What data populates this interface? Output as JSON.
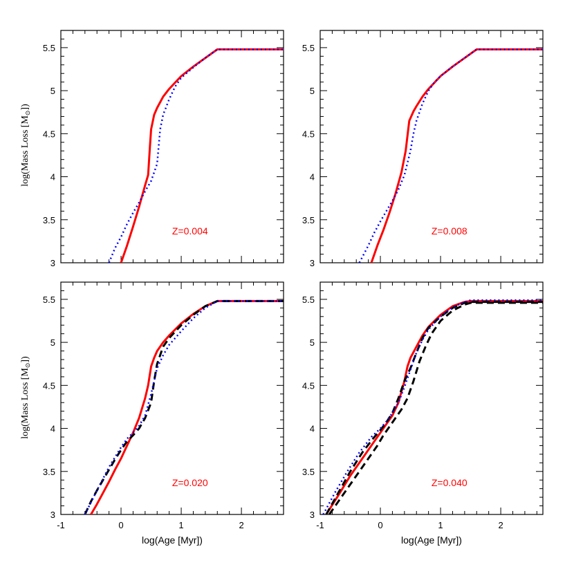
{
  "chart_data": [
    {
      "type": "line",
      "panel": "top-left",
      "annotation": "Z=0.004",
      "xlabel": "log(Age [Myr])",
      "ylabel": "log(Mass Loss [M_sun])",
      "xlim": [
        -1,
        2.7
      ],
      "ylim": [
        3,
        5.7
      ],
      "xticks": [
        "-1",
        "0",
        "1",
        "2"
      ],
      "yticks": [
        "3",
        "3.5",
        "4",
        "4.5",
        "5",
        "5.5"
      ],
      "series": [
        {
          "name": "red-solid",
          "style": "solid",
          "x": [
            0.0,
            0.1,
            0.2,
            0.3,
            0.4,
            0.45,
            0.48,
            0.5,
            0.55,
            0.6,
            0.7,
            0.8,
            1.0,
            1.2,
            1.4,
            1.6,
            2.7
          ],
          "y": [
            3.0,
            3.2,
            3.42,
            3.65,
            3.9,
            4.02,
            4.35,
            4.55,
            4.72,
            4.8,
            4.93,
            5.02,
            5.17,
            5.28,
            5.38,
            5.48,
            5.48
          ]
        },
        {
          "name": "blue-dotted",
          "style": "dotted",
          "x": [
            -0.2,
            -0.1,
            0.0,
            0.1,
            0.2,
            0.3,
            0.4,
            0.5,
            0.6,
            0.65,
            0.7,
            0.8,
            0.9,
            1.0,
            1.2,
            1.4,
            1.6,
            2.7
          ],
          "y": [
            3.0,
            3.17,
            3.3,
            3.45,
            3.58,
            3.7,
            3.83,
            3.95,
            4.15,
            4.55,
            4.72,
            4.9,
            5.05,
            5.15,
            5.27,
            5.38,
            5.48,
            5.48
          ]
        }
      ]
    },
    {
      "type": "line",
      "panel": "top-right",
      "annotation": "Z=0.008",
      "xlabel": "log(Age [Myr])",
      "ylabel": "",
      "xlim": [
        -1,
        2.7
      ],
      "ylim": [
        3,
        5.7
      ],
      "xticks": [
        "-1",
        "0",
        "1",
        "2"
      ],
      "yticks": [
        "3",
        "3.5",
        "4",
        "4.5",
        "5",
        "5.5"
      ],
      "series": [
        {
          "name": "red-solid",
          "style": "solid",
          "x": [
            -0.15,
            -0.05,
            0.05,
            0.15,
            0.25,
            0.35,
            0.42,
            0.48,
            0.55,
            0.6,
            0.7,
            0.8,
            1.0,
            1.2,
            1.4,
            1.6,
            2.7
          ],
          "y": [
            3.0,
            3.2,
            3.38,
            3.58,
            3.8,
            4.05,
            4.3,
            4.65,
            4.76,
            4.82,
            4.93,
            5.02,
            5.17,
            5.28,
            5.38,
            5.48,
            5.48
          ]
        },
        {
          "name": "blue-dotted",
          "style": "dotted",
          "x": [
            -0.35,
            -0.2,
            -0.1,
            0.0,
            0.1,
            0.2,
            0.3,
            0.4,
            0.5,
            0.55,
            0.6,
            0.7,
            0.8,
            0.9,
            1.0,
            1.2,
            1.4,
            1.6,
            2.7
          ],
          "y": [
            3.0,
            3.2,
            3.35,
            3.48,
            3.6,
            3.72,
            3.85,
            4.02,
            4.3,
            4.5,
            4.65,
            4.85,
            5.0,
            5.1,
            5.17,
            5.28,
            5.38,
            5.48,
            5.48
          ]
        }
      ]
    },
    {
      "type": "line",
      "panel": "bottom-left",
      "annotation": "Z=0.020",
      "xlabel": "log(Age [Myr])",
      "ylabel": "log(Mass Loss [M_sun])",
      "xlim": [
        -1,
        2.7
      ],
      "ylim": [
        3,
        5.7
      ],
      "xticks": [
        "-1",
        "0",
        "1",
        "2"
      ],
      "yticks": [
        "3",
        "3.5",
        "4",
        "4.5",
        "5",
        "5.5"
      ],
      "series": [
        {
          "name": "red-solid",
          "style": "solid",
          "x": [
            -0.5,
            -0.4,
            -0.3,
            -0.2,
            -0.1,
            0.0,
            0.1,
            0.2,
            0.3,
            0.4,
            0.45,
            0.5,
            0.55,
            0.6,
            0.7,
            0.8,
            1.0,
            1.2,
            1.4,
            1.6,
            2.7
          ],
          "y": [
            3.0,
            3.12,
            3.25,
            3.38,
            3.52,
            3.65,
            3.8,
            3.95,
            4.12,
            4.35,
            4.5,
            4.72,
            4.82,
            4.9,
            5.0,
            5.08,
            5.22,
            5.33,
            5.42,
            5.48,
            5.48
          ]
        },
        {
          "name": "black-dashed",
          "style": "dashed",
          "x": [
            -0.6,
            -0.5,
            -0.4,
            -0.3,
            -0.2,
            -0.1,
            0.0,
            0.1,
            0.2,
            0.3,
            0.4,
            0.5,
            0.55,
            0.6,
            0.7,
            0.8,
            1.0,
            1.2,
            1.4,
            1.6,
            2.7
          ],
          "y": [
            3.0,
            3.15,
            3.28,
            3.4,
            3.52,
            3.64,
            3.75,
            3.85,
            3.92,
            4.0,
            4.12,
            4.3,
            4.55,
            4.75,
            4.95,
            5.05,
            5.2,
            5.32,
            5.42,
            5.48,
            5.48
          ]
        },
        {
          "name": "blue-dotted",
          "style": "dotted",
          "x": [
            -0.6,
            -0.4,
            -0.2,
            0.0,
            0.1,
            0.2,
            0.3,
            0.4,
            0.5,
            0.6,
            0.7,
            0.8,
            1.0,
            1.2,
            1.4,
            1.6,
            2.7
          ],
          "y": [
            3.0,
            3.28,
            3.55,
            3.78,
            3.88,
            3.95,
            4.03,
            4.15,
            4.4,
            4.7,
            4.85,
            4.97,
            5.13,
            5.28,
            5.4,
            5.48,
            5.48
          ]
        }
      ]
    },
    {
      "type": "line",
      "panel": "bottom-right",
      "annotation": "Z=0.040",
      "xlabel": "log(Age [Myr])",
      "ylabel": "",
      "xlim": [
        -1,
        2.7
      ],
      "ylim": [
        3,
        5.7
      ],
      "xticks": [
        "-1",
        "0",
        "1",
        "2"
      ],
      "yticks": [
        "3",
        "3.5",
        "4",
        "4.5",
        "5",
        "5.5"
      ],
      "series": [
        {
          "name": "red-solid",
          "style": "solid",
          "x": [
            -0.9,
            -0.7,
            -0.5,
            -0.3,
            -0.1,
            0.0,
            0.1,
            0.2,
            0.3,
            0.4,
            0.45,
            0.5,
            0.6,
            0.7,
            0.8,
            1.0,
            1.2,
            1.4,
            1.5,
            2.7
          ],
          "y": [
            3.0,
            3.22,
            3.45,
            3.65,
            3.85,
            3.95,
            4.05,
            4.15,
            4.3,
            4.55,
            4.72,
            4.82,
            4.95,
            5.08,
            5.18,
            5.32,
            5.42,
            5.47,
            5.48,
            5.48
          ]
        },
        {
          "name": "black-dashed-1",
          "style": "dashed",
          "x": [
            -0.9,
            -0.7,
            -0.5,
            -0.3,
            -0.1,
            0.0,
            0.1,
            0.2,
            0.3,
            0.4,
            0.5,
            0.6,
            0.7,
            0.8,
            1.0,
            1.2,
            1.4,
            1.5,
            2.7
          ],
          "y": [
            3.0,
            3.25,
            3.5,
            3.72,
            3.9,
            3.98,
            4.07,
            4.18,
            4.35,
            4.55,
            4.7,
            4.88,
            5.05,
            5.17,
            5.3,
            5.4,
            5.46,
            5.47,
            5.47
          ]
        },
        {
          "name": "black-dashed-2",
          "style": "dashed",
          "x": [
            -0.85,
            -0.65,
            -0.45,
            -0.25,
            -0.05,
            0.05,
            0.15,
            0.25,
            0.35,
            0.45,
            0.55,
            0.65,
            0.75,
            0.85,
            1.0,
            1.2,
            1.4,
            1.5,
            2.7
          ],
          "y": [
            3.0,
            3.2,
            3.4,
            3.6,
            3.8,
            3.92,
            4.02,
            4.12,
            4.22,
            4.35,
            4.55,
            4.78,
            4.95,
            5.1,
            5.25,
            5.37,
            5.44,
            5.46,
            5.46
          ]
        },
        {
          "name": "blue-dotted",
          "style": "dotted",
          "x": [
            -0.95,
            -0.75,
            -0.55,
            -0.35,
            -0.15,
            0.0,
            0.1,
            0.2,
            0.3,
            0.4,
            0.5,
            0.6,
            0.7,
            0.8,
            1.0,
            1.2,
            1.4,
            1.5,
            2.7
          ],
          "y": [
            3.0,
            3.26,
            3.5,
            3.72,
            3.9,
            4.0,
            4.08,
            4.18,
            4.3,
            4.48,
            4.68,
            4.88,
            5.03,
            5.15,
            5.3,
            5.41,
            5.47,
            5.49,
            5.49
          ]
        }
      ]
    }
  ],
  "colors": {
    "red": "#ff0000",
    "blue": "#0000ff",
    "black": "#000000"
  }
}
